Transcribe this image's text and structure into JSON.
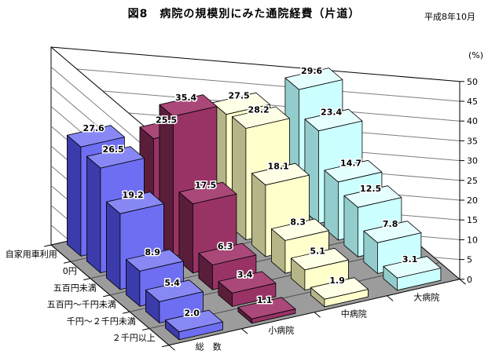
{
  "title": "図8　病院の規模別にみた通院経費（片道）",
  "date_note": "平成8年10月",
  "unit_label": "(%)",
  "chart_data": {
    "type": "bar",
    "projection": "3d",
    "title": "図8　病院の規模別にみた通院経費（片道）",
    "ylabel": "(%)",
    "ylim": [
      0,
      50
    ],
    "ytick_step": 5,
    "grid": true,
    "wall_color": "#ffffff",
    "floor_color": "#9c9c9c",
    "categories": [
      "自家用車利用",
      "0円",
      "五百円未満",
      "五百円～千円未満",
      "千円～２千円未満",
      "２千円以上"
    ],
    "series": [
      {
        "name": "総　数",
        "values": [
          27.6,
          26.5,
          19.2,
          8.9,
          5.4,
          2.0
        ],
        "colors": {
          "front": "#6e6ef2",
          "top": "#8888f5",
          "side": "#3b3bab"
        }
      },
      {
        "name": "小病院",
        "values": [
          25.5,
          35.4,
          17.5,
          6.3,
          3.4,
          1.1
        ],
        "colors": {
          "front": "#993366",
          "top": "#aa4879",
          "side": "#5a1e3b"
        }
      },
      {
        "name": "中病院",
        "values": [
          27.5,
          28.2,
          18.1,
          8.3,
          5.1,
          1.9
        ],
        "colors": {
          "front": "#ffffcc",
          "top": "#ffffe6",
          "side": "#b5b588"
        }
      },
      {
        "name": "大病院",
        "values": [
          29.6,
          23.4,
          14.7,
          12.5,
          7.8,
          3.1
        ],
        "colors": {
          "front": "#ccffff",
          "top": "#e5ffff",
          "side": "#93cccc"
        }
      }
    ]
  }
}
